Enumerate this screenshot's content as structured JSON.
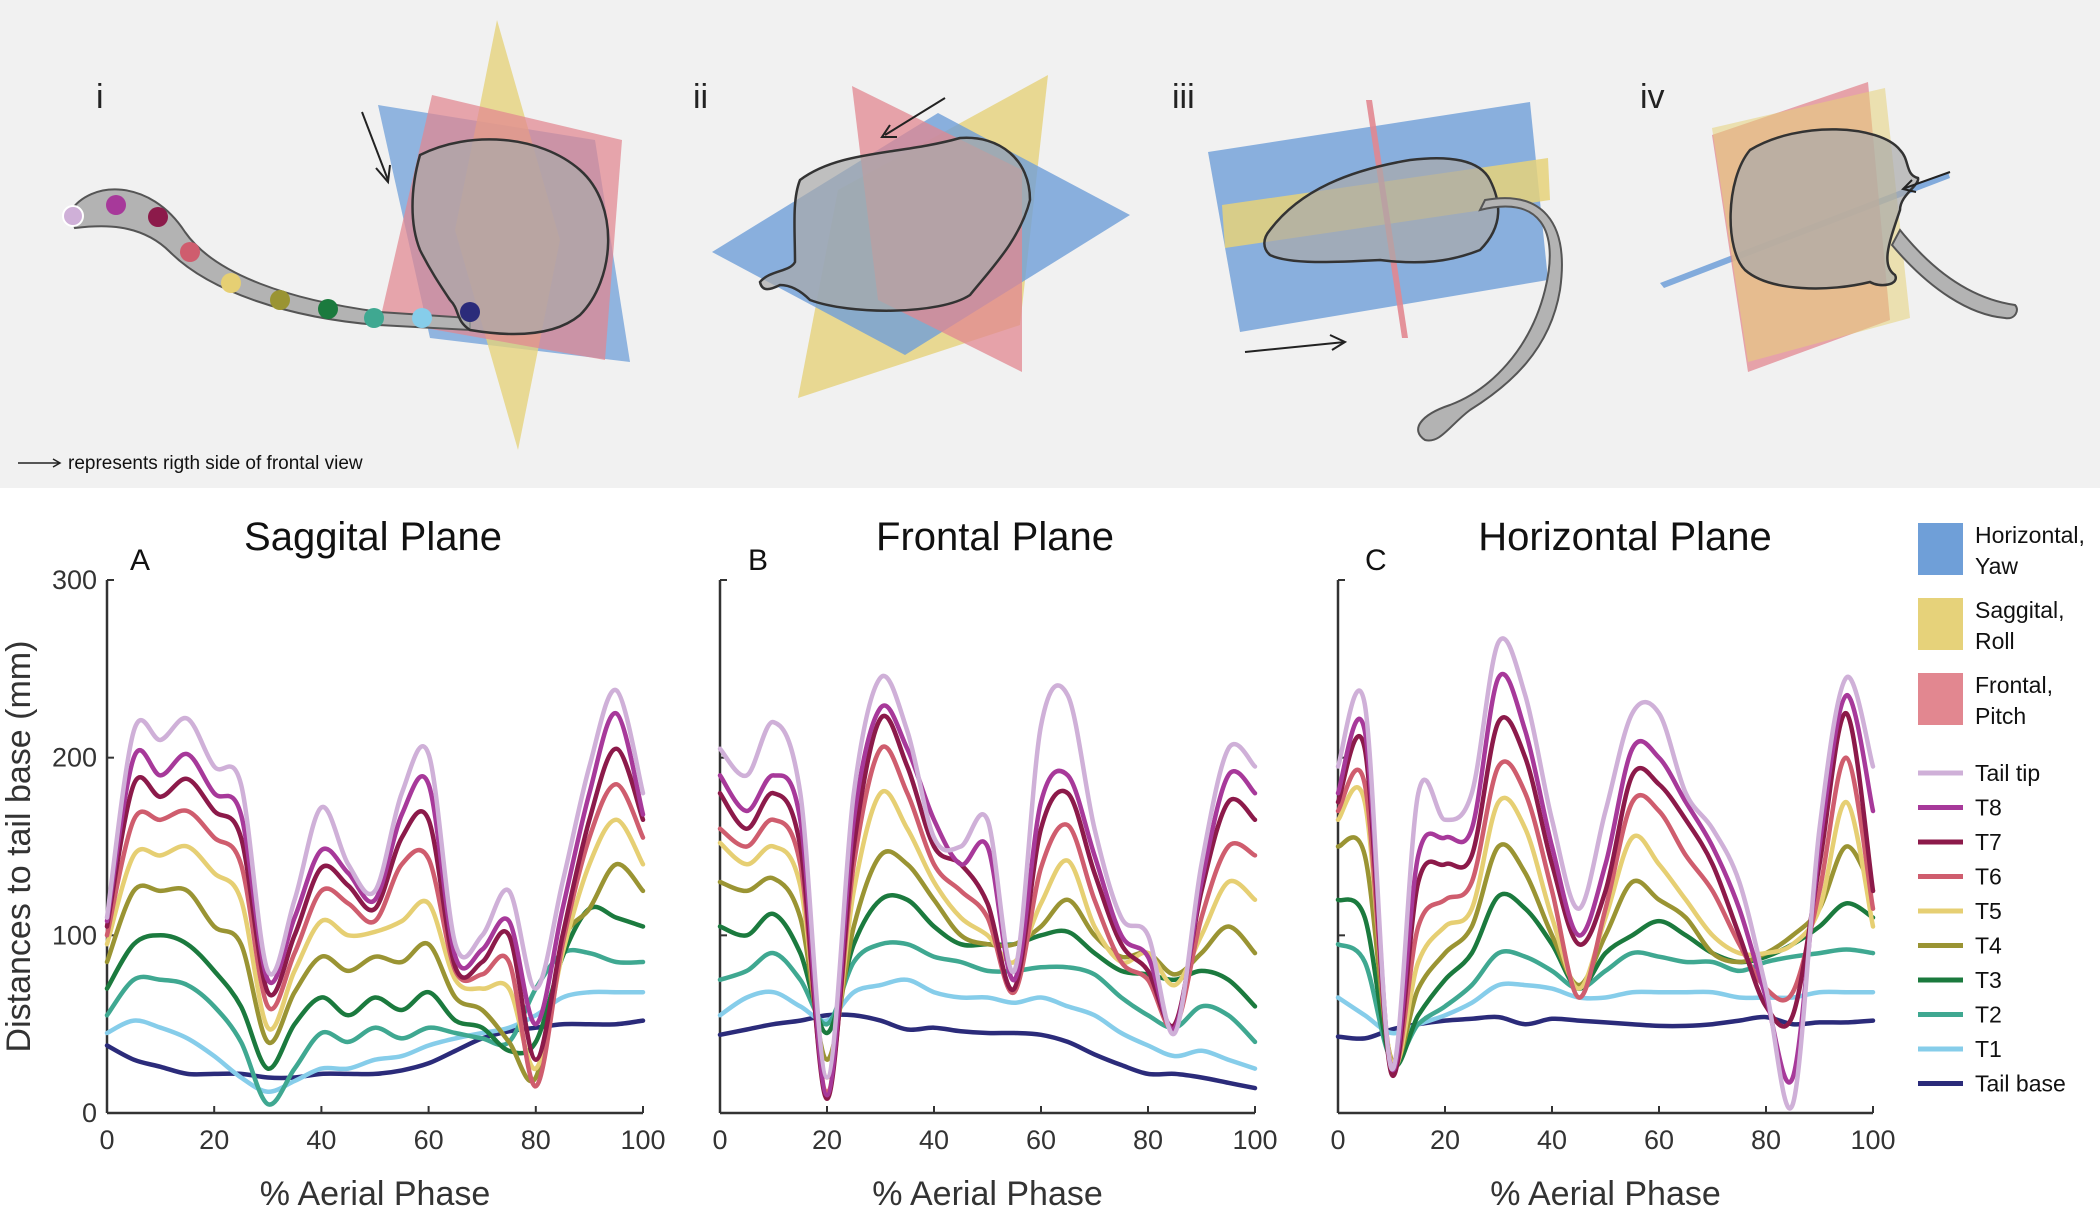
{
  "schematic": {
    "labels": [
      "i",
      "ii",
      "iii",
      "iv"
    ],
    "note": "represents rigth side of frontal view"
  },
  "colors": {
    "horizontal_plane": "#6f9fd8",
    "saggital_plane": "#e6d27a",
    "frontal_plane": "#e28790",
    "Tail tip": "#cfb0d8",
    "T8": "#a7399a",
    "T7": "#8c1a4a",
    "T6": "#cf5d6e",
    "T5": "#e6cf73",
    "T4": "#9a9433",
    "T3": "#1b7a3e",
    "T2": "#3fa891",
    "T1": "#86cdea",
    "Tail base": "#2b2b7a"
  },
  "legend": {
    "planes": [
      {
        "label_1": "Horizontal,",
        "label_2": "Yaw",
        "color": "#6f9fd8"
      },
      {
        "label_1": "Saggital,",
        "label_2": "Roll",
        "color": "#e6d27a"
      },
      {
        "label_1": "Frontal,",
        "label_2": "Pitch",
        "color": "#e28790"
      }
    ],
    "markers": [
      "Tail tip",
      "T8",
      "T7",
      "T6",
      "T5",
      "T4",
      "T3",
      "T2",
      "T1",
      "Tail base"
    ]
  },
  "chart_data": [
    {
      "type": "line",
      "panel": "A",
      "title": "Saggital Plane",
      "xlabel": "% Aerial Phase",
      "ylabel": "Distances to tail base (mm)",
      "xlim": [
        0,
        100
      ],
      "ylim": [
        0,
        300
      ],
      "xticks": [
        0,
        20,
        40,
        60,
        80,
        100
      ],
      "yticks": [
        0,
        100,
        200,
        300
      ],
      "x": [
        0,
        5,
        10,
        15,
        20,
        25,
        30,
        35,
        40,
        45,
        50,
        55,
        60,
        65,
        70,
        75,
        80,
        85,
        90,
        95,
        100
      ],
      "series": [
        {
          "name": "Tail tip",
          "values": [
            110,
            215,
            210,
            222,
            195,
            185,
            80,
            120,
            172,
            140,
            125,
            180,
            202,
            95,
            100,
            125,
            70,
            130,
            195,
            238,
            180
          ]
        },
        {
          "name": "T8",
          "values": [
            108,
            200,
            190,
            202,
            180,
            168,
            75,
            110,
            148,
            135,
            120,
            168,
            185,
            88,
            92,
            108,
            50,
            115,
            180,
            225,
            168
          ]
        },
        {
          "name": "T7",
          "values": [
            105,
            185,
            178,
            188,
            170,
            155,
            68,
            100,
            138,
            128,
            115,
            155,
            165,
            82,
            85,
            100,
            30,
            100,
            165,
            205,
            165
          ]
        },
        {
          "name": "T6",
          "values": [
            100,
            165,
            165,
            170,
            155,
            140,
            60,
            90,
            125,
            118,
            108,
            140,
            143,
            80,
            78,
            85,
            15,
            95,
            155,
            185,
            155
          ]
        },
        {
          "name": "T5",
          "values": [
            95,
            145,
            145,
            150,
            135,
            120,
            48,
            80,
            108,
            100,
            102,
            108,
            118,
            75,
            70,
            70,
            25,
            90,
            140,
            165,
            140
          ]
        },
        {
          "name": "T4",
          "values": [
            85,
            125,
            125,
            125,
            105,
            95,
            40,
            68,
            88,
            80,
            88,
            85,
            95,
            65,
            58,
            40,
            20,
            95,
            115,
            140,
            125
          ]
        },
        {
          "name": "T3",
          "values": [
            70,
            95,
            100,
            95,
            80,
            60,
            25,
            50,
            65,
            55,
            65,
            58,
            68,
            52,
            48,
            35,
            40,
            88,
            115,
            110,
            105
          ]
        },
        {
          "name": "T2",
          "values": [
            55,
            75,
            75,
            72,
            60,
            40,
            5,
            25,
            45,
            40,
            48,
            42,
            48,
            45,
            42,
            40,
            70,
            90,
            90,
            85,
            85
          ]
        },
        {
          "name": "T1",
          "values": [
            45,
            52,
            48,
            42,
            32,
            20,
            12,
            18,
            25,
            25,
            30,
            32,
            38,
            42,
            45,
            48,
            55,
            65,
            68,
            68,
            68
          ]
        },
        {
          "name": "Tail base",
          "values": [
            38,
            30,
            26,
            22,
            22,
            22,
            20,
            20,
            22,
            22,
            22,
            24,
            28,
            35,
            42,
            46,
            48,
            50,
            50,
            50,
            52
          ]
        }
      ]
    },
    {
      "type": "line",
      "panel": "B",
      "title": "Frontal Plane",
      "xlabel": "% Aerial Phase",
      "ylabel": "",
      "xlim": [
        0,
        100
      ],
      "ylim": [
        0,
        300
      ],
      "xticks": [
        0,
        20,
        40,
        60,
        80,
        100
      ],
      "yticks": [],
      "x": [
        0,
        5,
        10,
        15,
        20,
        25,
        30,
        35,
        40,
        45,
        50,
        55,
        60,
        65,
        70,
        75,
        80,
        85,
        90,
        95,
        100
      ],
      "series": [
        {
          "name": "Tail tip",
          "values": [
            205,
            190,
            220,
            180,
            20,
            180,
            245,
            215,
            155,
            150,
            165,
            80,
            218,
            235,
            160,
            110,
            100,
            45,
            140,
            205,
            195
          ]
        },
        {
          "name": "T8",
          "values": [
            190,
            170,
            190,
            165,
            10,
            165,
            228,
            205,
            165,
            140,
            150,
            75,
            175,
            190,
            145,
            100,
            88,
            48,
            130,
            190,
            180
          ]
        },
        {
          "name": "T7",
          "values": [
            180,
            160,
            180,
            150,
            8,
            150,
            222,
            195,
            150,
            140,
            118,
            70,
            160,
            180,
            135,
            95,
            80,
            50,
            125,
            175,
            165
          ]
        },
        {
          "name": "T6",
          "values": [
            160,
            150,
            165,
            140,
            12,
            140,
            205,
            180,
            140,
            125,
            110,
            68,
            138,
            162,
            120,
            85,
            75,
            48,
            110,
            150,
            145
          ]
        },
        {
          "name": "T5",
          "values": [
            152,
            140,
            150,
            128,
            20,
            125,
            180,
            160,
            130,
            110,
            100,
            85,
            118,
            142,
            105,
            85,
            90,
            72,
            100,
            130,
            120
          ]
        },
        {
          "name": "T4",
          "values": [
            130,
            125,
            132,
            110,
            30,
            105,
            145,
            140,
            120,
            100,
            95,
            95,
            105,
            120,
            100,
            88,
            90,
            78,
            90,
            105,
            90
          ]
        },
        {
          "name": "T3",
          "values": [
            105,
            100,
            112,
            90,
            45,
            95,
            120,
            120,
            105,
            95,
            95,
            95,
            100,
            102,
            90,
            80,
            78,
            75,
            80,
            75,
            60
          ]
        },
        {
          "name": "T2",
          "values": [
            75,
            80,
            90,
            75,
            50,
            85,
            95,
            95,
            88,
            85,
            80,
            80,
            82,
            82,
            78,
            65,
            55,
            48,
            60,
            55,
            40
          ]
        },
        {
          "name": "T1",
          "values": [
            55,
            65,
            68,
            60,
            52,
            68,
            72,
            75,
            68,
            65,
            65,
            62,
            65,
            60,
            55,
            45,
            38,
            32,
            35,
            30,
            25
          ]
        },
        {
          "name": "Tail base",
          "values": [
            44,
            47,
            50,
            52,
            55,
            55,
            52,
            47,
            48,
            46,
            45,
            45,
            44,
            40,
            33,
            27,
            22,
            22,
            20,
            17,
            14
          ]
        }
      ]
    },
    {
      "type": "line",
      "panel": "C",
      "title": "Horizontal Plane",
      "xlabel": "% Aerial Phase",
      "ylabel": "",
      "xlim": [
        0,
        100
      ],
      "ylim": [
        0,
        300
      ],
      "xticks": [
        0,
        20,
        40,
        60,
        80,
        100
      ],
      "yticks": [],
      "x": [
        0,
        5,
        10,
        15,
        20,
        25,
        30,
        35,
        40,
        45,
        50,
        55,
        60,
        65,
        70,
        75,
        80,
        85,
        90,
        95,
        100
      ],
      "series": [
        {
          "name": "Tail tip",
          "values": [
            195,
            230,
            25,
            180,
            165,
            180,
            265,
            235,
            165,
            115,
            170,
            225,
            225,
            180,
            160,
            130,
            70,
            5,
            160,
            245,
            195
          ]
        },
        {
          "name": "T8",
          "values": [
            180,
            215,
            25,
            145,
            155,
            160,
            245,
            215,
            150,
            100,
            140,
            205,
            200,
            175,
            150,
            115,
            65,
            20,
            150,
            235,
            170
          ]
        },
        {
          "name": "T7",
          "values": [
            175,
            205,
            22,
            130,
            140,
            145,
            220,
            200,
            140,
            95,
            125,
            190,
            185,
            165,
            140,
            100,
            60,
            55,
            140,
            225,
            125
          ]
        },
        {
          "name": "T6",
          "values": [
            170,
            185,
            25,
            105,
            120,
            130,
            195,
            180,
            125,
            65,
            115,
            175,
            170,
            145,
            125,
            95,
            70,
            68,
            125,
            200,
            115
          ]
        },
        {
          "name": "T5",
          "values": [
            165,
            175,
            28,
            85,
            105,
            115,
            175,
            160,
            110,
            70,
            110,
            155,
            140,
            120,
            100,
            90,
            90,
            95,
            115,
            175,
            105
          ]
        },
        {
          "name": "T4",
          "values": [
            150,
            145,
            30,
            70,
            90,
            105,
            150,
            135,
            100,
            72,
            100,
            130,
            120,
            110,
            90,
            85,
            90,
            100,
            115,
            150,
            125
          ]
        },
        {
          "name": "T3",
          "values": [
            120,
            110,
            28,
            55,
            75,
            90,
            122,
            115,
            95,
            70,
            90,
            100,
            108,
            100,
            90,
            85,
            88,
            95,
            105,
            118,
            110
          ]
        },
        {
          "name": "T2",
          "values": [
            95,
            85,
            30,
            50,
            60,
            72,
            90,
            88,
            80,
            70,
            80,
            90,
            88,
            85,
            85,
            80,
            85,
            88,
            90,
            92,
            90
          ]
        },
        {
          "name": "T1",
          "values": [
            65,
            55,
            45,
            50,
            55,
            62,
            72,
            72,
            70,
            65,
            65,
            68,
            68,
            68,
            68,
            65,
            65,
            65,
            68,
            68,
            68
          ]
        },
        {
          "name": "Tail base",
          "values": [
            43,
            42,
            47,
            50,
            52,
            53,
            54,
            50,
            53,
            52,
            51,
            50,
            49,
            49,
            50,
            52,
            54,
            50,
            51,
            51,
            52
          ]
        }
      ]
    }
  ]
}
